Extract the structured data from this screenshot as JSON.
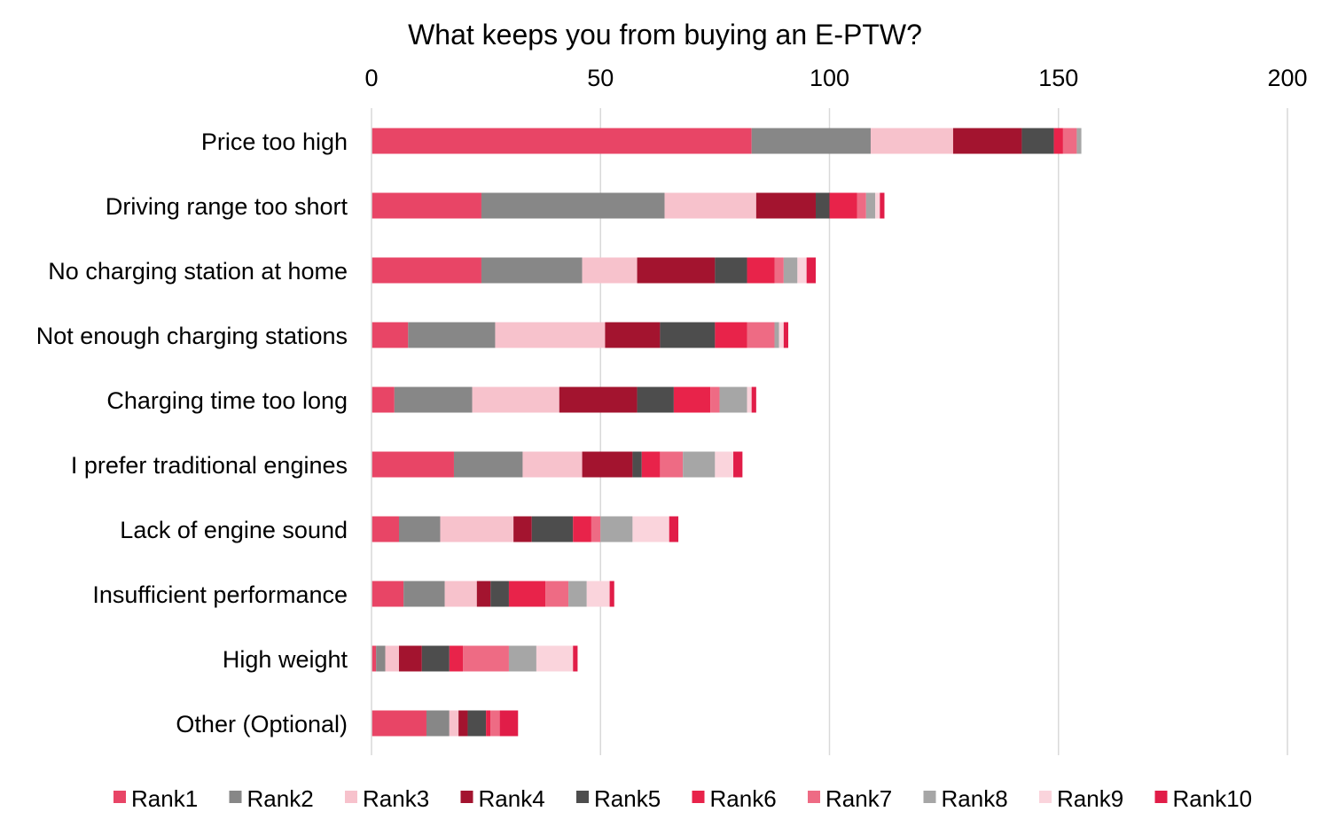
{
  "chart_data": {
    "type": "bar",
    "orientation": "horizontal",
    "stacked": true,
    "title": "What keeps you from buying an E-PTW?",
    "xlabel": "",
    "ylabel": "",
    "xlim": [
      0,
      200
    ],
    "x_ticks": [
      "0",
      "50",
      "100",
      "150",
      "200"
    ],
    "x_axis_position": "top",
    "grid": true,
    "legend": "bottom",
    "categories": [
      "Price too high",
      "Driving range too short",
      "No charging station at home",
      "Not enough charging stations",
      "Charging time too long",
      "I prefer traditional engines",
      "Lack of engine sound",
      "Insufficient performance",
      "High weight",
      "Other (Optional)"
    ],
    "series": [
      {
        "name": "Rank1",
        "color": "#E84566",
        "values": [
          83,
          24,
          24,
          8,
          5,
          18,
          6,
          7,
          1,
          12
        ]
      },
      {
        "name": "Rank2",
        "color": "#878787",
        "values": [
          26,
          40,
          22,
          19,
          17,
          15,
          9,
          9,
          2,
          5
        ]
      },
      {
        "name": "Rank3",
        "color": "#F7C2CC",
        "values": [
          18,
          20,
          12,
          24,
          19,
          13,
          16,
          7,
          3,
          2
        ]
      },
      {
        "name": "Rank4",
        "color": "#A3142F",
        "values": [
          15,
          13,
          17,
          12,
          17,
          11,
          4,
          3,
          5,
          2
        ]
      },
      {
        "name": "Rank5",
        "color": "#4D4D4D",
        "values": [
          7,
          3,
          7,
          12,
          8,
          2,
          9,
          4,
          6,
          4
        ]
      },
      {
        "name": "Rank6",
        "color": "#E8234A",
        "values": [
          2,
          6,
          6,
          7,
          8,
          4,
          4,
          8,
          3,
          1
        ]
      },
      {
        "name": "Rank7",
        "color": "#EE6B84",
        "values": [
          3,
          2,
          2,
          6,
          2,
          5,
          2,
          5,
          10,
          2
        ]
      },
      {
        "name": "Rank8",
        "color": "#A6A6A6",
        "values": [
          1,
          2,
          3,
          1,
          6,
          7,
          7,
          4,
          6,
          0
        ]
      },
      {
        "name": "Rank9",
        "color": "#FAD4DC",
        "values": [
          0,
          1,
          2,
          1,
          1,
          4,
          8,
          5,
          8,
          0
        ]
      },
      {
        "name": "Rank10",
        "color": "#E11D48",
        "values": [
          0,
          1,
          2,
          1,
          1,
          2,
          2,
          1,
          1,
          4
        ]
      }
    ]
  }
}
